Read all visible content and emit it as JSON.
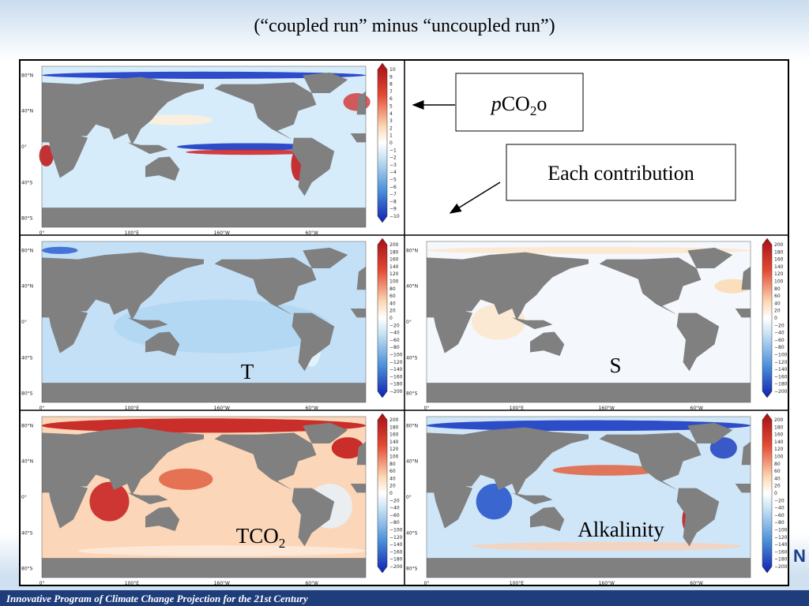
{
  "title": "(“coupled run” minus “uncoupled run”)",
  "callouts": {
    "pco2o": {
      "italic": "p",
      "base": "CO",
      "sub": "2",
      "tail": "o"
    },
    "each": "Each contribution"
  },
  "panel_labels": {
    "t": "T",
    "s": "S",
    "tco2": {
      "base": "TCO",
      "sub": "2"
    },
    "alkalinity": "Alkalinity"
  },
  "map_axes": {
    "lat": [
      "80°N",
      "40°N",
      "0°",
      "40°S",
      "80°S"
    ],
    "lon": [
      "0°",
      "100°E",
      "160°W",
      "60°W"
    ]
  },
  "colorbars": {
    "pco2": [
      "10",
      "9",
      "8",
      "7",
      "6",
      "5",
      "4",
      "3",
      "2",
      "1",
      "0",
      "−1",
      "−2",
      "−3",
      "−4",
      "−5",
      "−6",
      "−7",
      "−8",
      "−9",
      "−10"
    ],
    "contribution": [
      "200",
      "180",
      "160",
      "140",
      "120",
      "100",
      "80",
      "60",
      "40",
      "20",
      "0",
      "−20",
      "−40",
      "−60",
      "−80",
      "−100",
      "−120",
      "−140",
      "−160",
      "−180",
      "−200"
    ]
  },
  "logo_text": "N",
  "footer": "Innovative Program of Climate Change Projection for the 21st Century"
}
